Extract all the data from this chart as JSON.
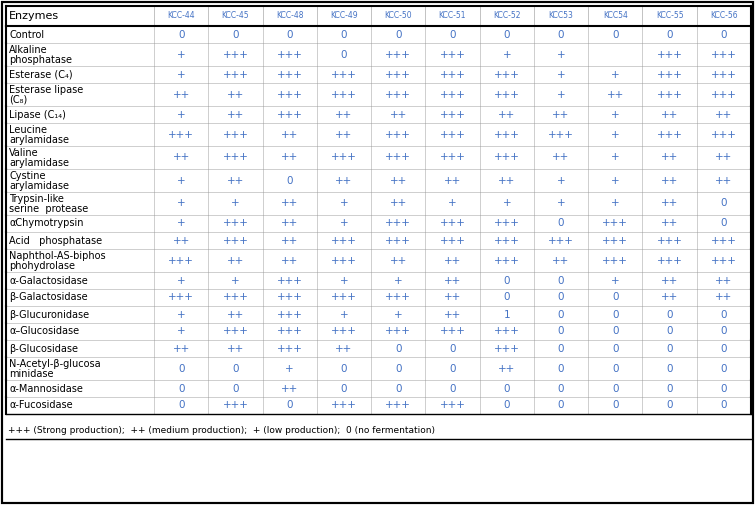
{
  "columns": [
    "Enzymes",
    "KCC-44",
    "KCC-45",
    "KCC-48",
    "KCC-49",
    "KCC-50",
    "KCC-51",
    "KCC-52",
    "KCC53",
    "KCC54",
    "KCC-55",
    "KCC-56"
  ],
  "rows": [
    [
      "Control",
      "0",
      "0",
      "0",
      "0",
      "0",
      "0",
      "0",
      "0",
      "0",
      "0",
      "0"
    ],
    [
      "Alkaline\nphosphatase",
      "+",
      "+++",
      "+++",
      "0",
      "+++",
      "+++",
      "+",
      "+",
      "",
      "+++",
      "+++"
    ],
    [
      "Esterase (C₄)",
      "+",
      "+++",
      "+++",
      "+++",
      "+++",
      "+++",
      "+++",
      "+",
      "+",
      "+++",
      "+++"
    ],
    [
      "Esterase lipase\n(C₈)",
      "++",
      "++",
      "+++",
      "+++",
      "+++",
      "+++",
      "+++",
      "+",
      "++",
      "+++",
      "+++"
    ],
    [
      "Lipase (C₁₄)",
      "+",
      "++",
      "+++",
      "++",
      "++",
      "+++",
      "++",
      "++",
      "+",
      "++",
      "++"
    ],
    [
      "Leucine\narylamidase",
      "+++",
      "+++",
      "++",
      "++",
      "+++",
      "+++",
      "+++",
      "+++",
      "+",
      "+++",
      "+++"
    ],
    [
      "Valine\narylamidase",
      "++",
      "+++",
      "++",
      "+++",
      "+++",
      "+++",
      "+++",
      "++",
      "+",
      "++",
      "++"
    ],
    [
      "Cystine\narylamidase",
      "+",
      "++",
      "0",
      "++",
      "++",
      "++",
      "++",
      "+",
      "+",
      "++",
      "++"
    ],
    [
      "Trypsin-like\nserine  protease",
      "+",
      "+",
      "++",
      "+",
      "++",
      "+",
      "+",
      "+",
      "+",
      "++",
      "0"
    ],
    [
      "αChymotrypsin",
      "+",
      "+++",
      "++",
      "+",
      "+++",
      "+++",
      "+++",
      "0",
      "+++",
      "++",
      "0"
    ],
    [
      "Acid   phosphatase",
      "++",
      "+++",
      "++",
      "+++",
      "+++",
      "+++",
      "+++",
      "+++",
      "+++",
      "+++",
      "+++"
    ],
    [
      "Naphthol-AS-biphos\nphohydrolase",
      "+++",
      "++",
      "++",
      "+++",
      "++",
      "++",
      "+++",
      "++",
      "+++",
      "+++",
      "+++"
    ],
    [
      "α-Galactosidase",
      "+",
      "+",
      "+++",
      "+",
      "+",
      "++",
      "0",
      "0",
      "+",
      "++",
      "++"
    ],
    [
      "β-Galactosidase",
      "+++",
      "+++",
      "+++",
      "+++",
      "+++",
      "++",
      "0",
      "0",
      "0",
      "++",
      "++"
    ],
    [
      "β-Glucuronidase",
      "+",
      "++",
      "+++",
      "+",
      "+",
      "++",
      "1",
      "0",
      "0",
      "0",
      "0"
    ],
    [
      "α–Glucosidase",
      "+",
      "+++",
      "+++",
      "+++",
      "+++",
      "+++",
      "+++",
      "0",
      "0",
      "0",
      "0"
    ],
    [
      "β-Glucosidase",
      "++",
      "++",
      "+++",
      "++",
      "0",
      "0",
      "+++",
      "0",
      "0",
      "0",
      "0"
    ],
    [
      "N-Acetyl-β-glucosa\nminidase",
      "0",
      "0",
      "+",
      "0",
      "0",
      "0",
      "++",
      "0",
      "0",
      "0",
      "0"
    ],
    [
      "α-Mannosidase",
      "0",
      "0",
      "++",
      "0",
      "0",
      "0",
      "0",
      "0",
      "0",
      "0",
      "0"
    ],
    [
      "α-Fucosidase",
      "0",
      "+++",
      "0",
      "+++",
      "+++",
      "+++",
      "0",
      "0",
      "0",
      "0",
      "0"
    ]
  ],
  "footer": "+++ (Strong production);  ++ (medium production);  + (low production);  0 (no fermentation)",
  "col_color": "#4472c4",
  "val_color": "#4472c4",
  "enzyme_color": "#000000",
  "bg": "#ffffff",
  "outer_border": "#000000",
  "inner_line": "#aaaaaa",
  "header_thick_line": "#000000"
}
